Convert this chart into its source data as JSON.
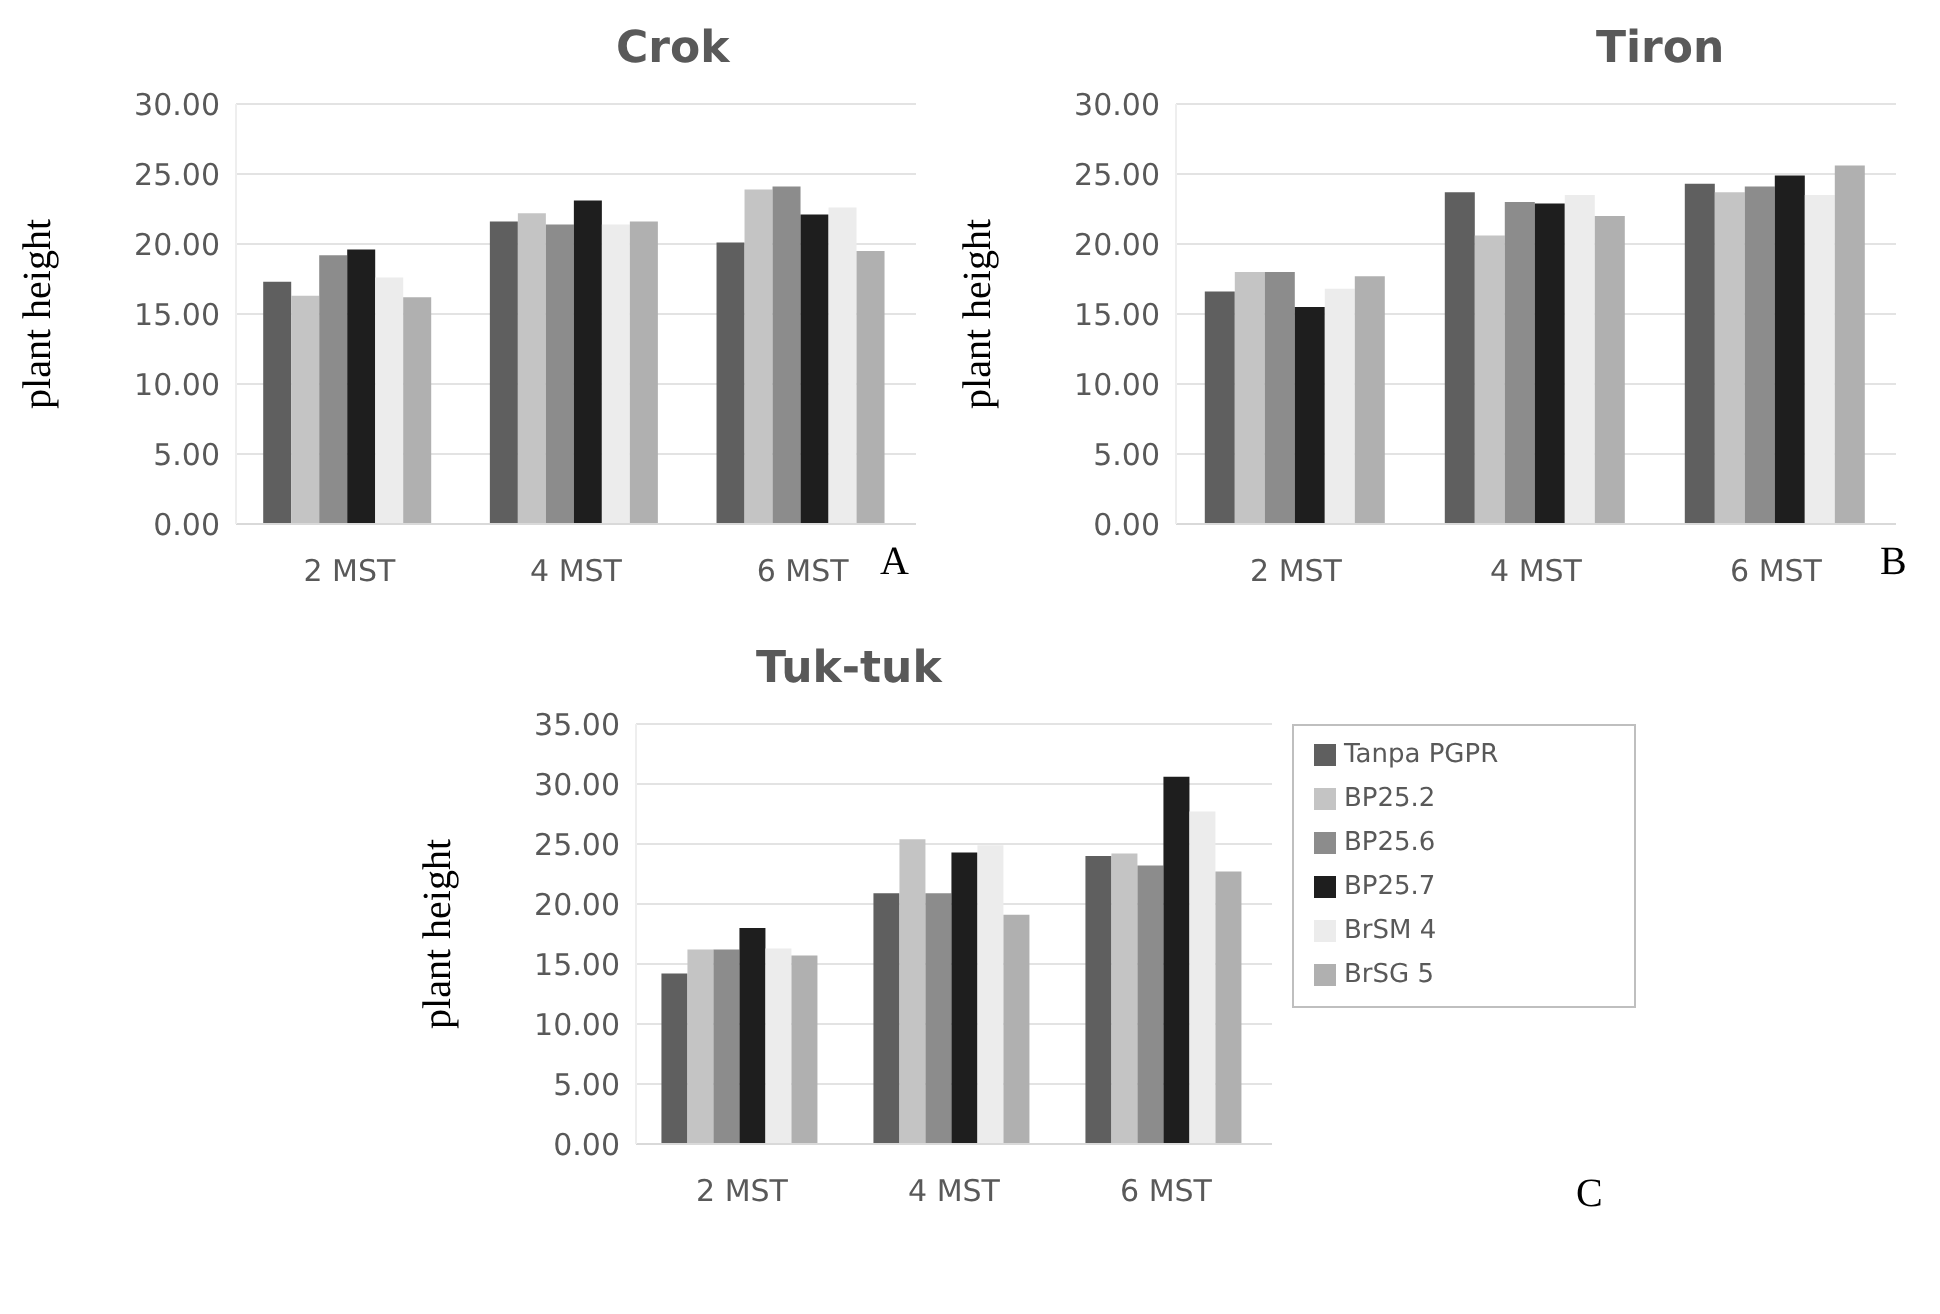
{
  "chart_data": [
    {
      "type": "bar",
      "title": "Crok",
      "ylabel": "plant height",
      "categories": [
        "2 MST",
        "4 MST",
        "6 MST"
      ],
      "series": [
        {
          "color": "#5f5f5f",
          "values": [
            17.3,
            21.6,
            20.1
          ]
        },
        {
          "color": "#c4c4c4",
          "values": [
            16.3,
            22.2,
            23.9
          ]
        },
        {
          "color": "#8c8c8c",
          "values": [
            19.2,
            21.4,
            24.1
          ]
        },
        {
          "color": "#1e1e1e",
          "values": [
            19.6,
            23.1,
            22.1
          ]
        },
        {
          "color": "#ececec",
          "values": [
            17.6,
            21.4,
            22.6
          ]
        },
        {
          "color": "#b0b0b0",
          "values": [
            16.2,
            21.6,
            19.5
          ]
        }
      ],
      "ylim": [
        0,
        30
      ],
      "yticks": [
        {
          "value": 0,
          "label": "0.00"
        },
        {
          "value": 5,
          "label": "5.00"
        },
        {
          "value": 10,
          "label": "10.00"
        },
        {
          "value": 15,
          "label": "15.00"
        },
        {
          "value": 20,
          "label": "20.00"
        },
        {
          "value": 25,
          "label": "25.00"
        },
        {
          "value": 30,
          "label": "30.00"
        }
      ],
      "grid": "y",
      "annotations": [
        "A"
      ]
    },
    {
      "type": "bar",
      "title": "Tiron",
      "ylabel": "plant height",
      "categories": [
        "2 MST",
        "4 MST",
        "6 MST"
      ],
      "series": [
        {
          "color": "#5f5f5f",
          "values": [
            16.6,
            23.7,
            24.3
          ]
        },
        {
          "color": "#c4c4c4",
          "values": [
            18.0,
            20.6,
            23.7
          ]
        },
        {
          "color": "#8c8c8c",
          "values": [
            18.0,
            23.0,
            24.1
          ]
        },
        {
          "color": "#1e1e1e",
          "values": [
            15.5,
            22.9,
            24.9
          ]
        },
        {
          "color": "#ececec",
          "values": [
            16.8,
            23.5,
            23.5
          ]
        },
        {
          "color": "#b0b0b0",
          "values": [
            17.7,
            22.0,
            25.6
          ]
        }
      ],
      "ylim": [
        0,
        30
      ],
      "yticks": [
        {
          "value": 0,
          "label": "0.00"
        },
        {
          "value": 5,
          "label": "5.00"
        },
        {
          "value": 10,
          "label": "10.00"
        },
        {
          "value": 15,
          "label": "15.00"
        },
        {
          "value": 20,
          "label": "20.00"
        },
        {
          "value": 25,
          "label": "25.00"
        },
        {
          "value": 30,
          "label": "30.00"
        }
      ],
      "grid": "y",
      "annotations": [
        "B"
      ]
    },
    {
      "type": "bar",
      "title": "Tuk-tuk",
      "ylabel": "plant height",
      "categories": [
        "2 MST",
        "4 MST",
        "6 MST"
      ],
      "series": [
        {
          "name": "Tanpa PGPR",
          "color": "#5f5f5f",
          "values": [
            14.2,
            20.9,
            24.0
          ]
        },
        {
          "name": "BP25.2",
          "color": "#c4c4c4",
          "values": [
            16.2,
            25.4,
            24.2
          ]
        },
        {
          "name": "BP25.6",
          "color": "#8c8c8c",
          "values": [
            16.2,
            20.9,
            23.2
          ]
        },
        {
          "name": "BP25.7",
          "color": "#1e1e1e",
          "values": [
            18.0,
            24.3,
            30.6
          ]
        },
        {
          "name": "BrSM 4",
          "color": "#ececec",
          "values": [
            16.3,
            24.9,
            27.7
          ]
        },
        {
          "name": "BrSG 5",
          "color": "#b0b0b0",
          "values": [
            15.7,
            19.1,
            22.7
          ]
        }
      ],
      "ylim": [
        0,
        35
      ],
      "yticks": [
        {
          "value": 0,
          "label": "0.00"
        },
        {
          "value": 5,
          "label": "5.00"
        },
        {
          "value": 10,
          "label": "10.00"
        },
        {
          "value": 15,
          "label": "15.00"
        },
        {
          "value": 20,
          "label": "20.00"
        },
        {
          "value": 25,
          "label": "25.00"
        },
        {
          "value": 30,
          "label": "30.00"
        },
        {
          "value": 35,
          "label": "35.00"
        }
      ],
      "grid": "y",
      "legend": "right",
      "annotations": [
        "C"
      ]
    }
  ]
}
